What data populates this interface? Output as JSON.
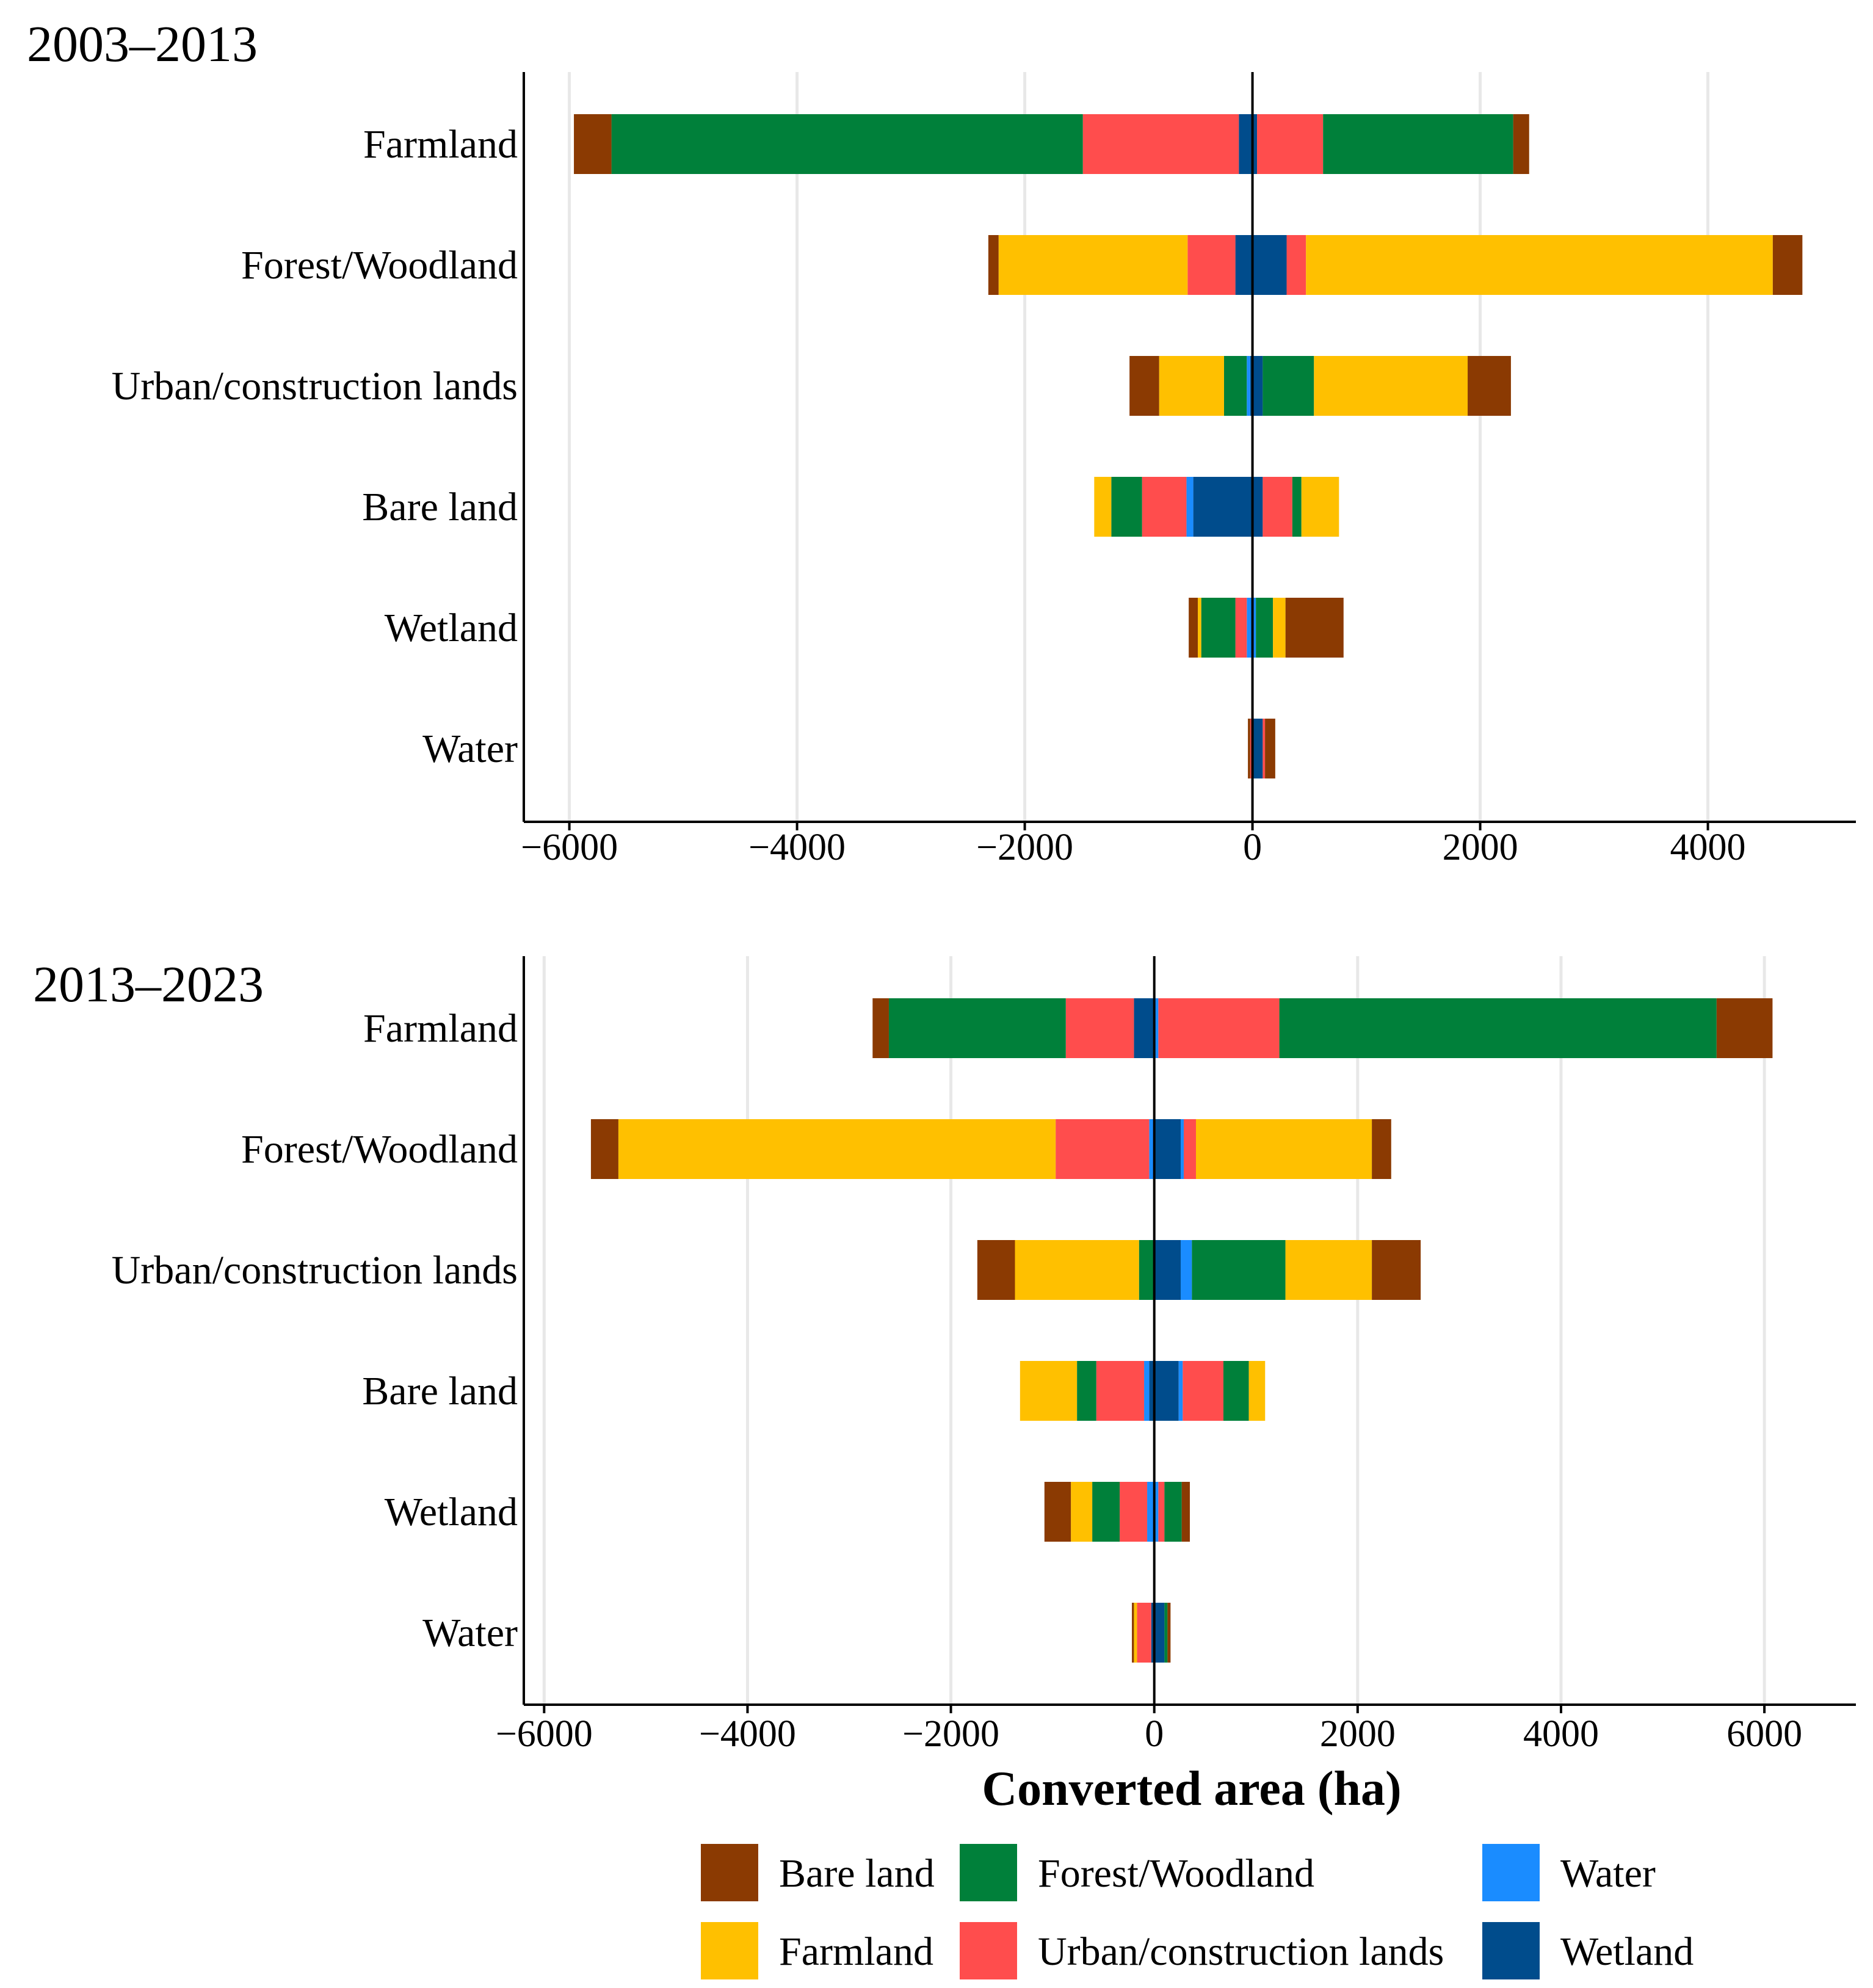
{
  "figure": {
    "xlabel": "Converted area (ha)"
  },
  "chart_data": [
    {
      "type": "bar",
      "orientation": "horizontal-diverging-stacked",
      "title": "2003–2013",
      "xlim": [
        -6400,
        5300
      ],
      "xticks": [
        -6000,
        -4000,
        -2000,
        0,
        2000,
        4000
      ],
      "xtick_labels": [
        "−6000",
        "−4000",
        "−2000",
        "0",
        "2000",
        "4000"
      ],
      "grid": true,
      "categories": [
        "Farmland",
        "Forest/Woodland",
        "Urban/construction lands",
        "Bare land",
        "Wetland",
        "Water"
      ],
      "rows": [
        {
          "category": "Farmland",
          "negative": [
            [
              "Wetland",
              120
            ],
            [
              "Urban/construction lands",
              1370
            ],
            [
              "Forest/Woodland",
              4140
            ],
            [
              "Bare land",
              330
            ]
          ],
          "positive": [
            [
              "Wetland",
              40
            ],
            [
              "Urban/construction lands",
              580
            ],
            [
              "Forest/Woodland",
              1670
            ],
            [
              "Bare land",
              140
            ]
          ]
        },
        {
          "category": "Forest/Woodland",
          "negative": [
            [
              "Wetland",
              150
            ],
            [
              "Urban/construction lands",
              420
            ],
            [
              "Farmland",
              1660
            ],
            [
              "Bare land",
              90
            ]
          ],
          "positive": [
            [
              "Wetland",
              300
            ],
            [
              "Urban/construction lands",
              170
            ],
            [
              "Farmland",
              4100
            ],
            [
              "Bare land",
              260
            ]
          ]
        },
        {
          "category": "Urban/construction lands",
          "negative": [
            [
              "Wetland",
              20
            ],
            [
              "Water",
              30
            ],
            [
              "Forest/Woodland",
              200
            ],
            [
              "Farmland",
              570
            ],
            [
              "Bare land",
              260
            ]
          ],
          "positive": [
            [
              "Wetland",
              90
            ],
            [
              "Forest/Woodland",
              450
            ],
            [
              "Farmland",
              1350
            ],
            [
              "Bare land",
              380
            ]
          ]
        },
        {
          "category": "Bare land",
          "negative": [
            [
              "Wetland",
              520
            ],
            [
              "Water",
              60
            ],
            [
              "Urban/construction lands",
              390
            ],
            [
              "Forest/Woodland",
              270
            ],
            [
              "Farmland",
              150
            ]
          ],
          "positive": [
            [
              "Wetland",
              90
            ],
            [
              "Urban/construction lands",
              260
            ],
            [
              "Forest/Woodland",
              80
            ],
            [
              "Farmland",
              330
            ]
          ]
        },
        {
          "category": "Wetland",
          "negative": [
            [
              "Water",
              50
            ],
            [
              "Urban/construction lands",
              100
            ],
            [
              "Forest/Woodland",
              300
            ],
            [
              "Farmland",
              30
            ],
            [
              "Bare land",
              80
            ]
          ],
          "positive": [
            [
              "Water",
              30
            ],
            [
              "Forest/Woodland",
              150
            ],
            [
              "Farmland",
              110
            ],
            [
              "Bare land",
              510
            ]
          ]
        },
        {
          "category": "Water",
          "negative": [
            [
              "Urban/construction lands",
              20
            ],
            [
              "Bare land",
              20
            ]
          ],
          "positive": [
            [
              "Wetland",
              90
            ],
            [
              "Urban/construction lands",
              20
            ],
            [
              "Bare land",
              90
            ]
          ]
        }
      ]
    },
    {
      "type": "bar",
      "orientation": "horizontal-diverging-stacked",
      "title": "2013–2023",
      "xlim": [
        -6200,
        6900
      ],
      "xticks": [
        -6000,
        -4000,
        -2000,
        0,
        2000,
        4000,
        6000
      ],
      "xtick_labels": [
        "−6000",
        "−4000",
        "−2000",
        "0",
        "2000",
        "4000",
        "6000"
      ],
      "grid": true,
      "categories": [
        "Farmland",
        "Forest/Woodland",
        "Urban/construction lands",
        "Bare land",
        "Wetland",
        "Water"
      ],
      "rows": [
        {
          "category": "Farmland",
          "negative": [
            [
              "Wetland",
              200
            ],
            [
              "Urban/construction lands",
              670
            ],
            [
              "Forest/Woodland",
              1740
            ],
            [
              "Bare land",
              160
            ]
          ],
          "positive": [
            [
              "Water",
              40
            ],
            [
              "Urban/construction lands",
              1190
            ],
            [
              "Forest/Woodland",
              4300
            ],
            [
              "Bare land",
              550
            ]
          ]
        },
        {
          "category": "Forest/Woodland",
          "negative": [
            [
              "Water",
              50
            ],
            [
              "Urban/construction lands",
              920
            ],
            [
              "Farmland",
              4300
            ],
            [
              "Bare land",
              270
            ]
          ],
          "positive": [
            [
              "Wetland",
              260
            ],
            [
              "Water",
              30
            ],
            [
              "Urban/construction lands",
              120
            ],
            [
              "Farmland",
              1730
            ],
            [
              "Bare land",
              190
            ]
          ]
        },
        {
          "category": "Urban/construction lands",
          "negative": [
            [
              "Forest/Woodland",
              150
            ],
            [
              "Farmland",
              1220
            ],
            [
              "Bare land",
              370
            ]
          ],
          "positive": [
            [
              "Wetland",
              260
            ],
            [
              "Water",
              110
            ],
            [
              "Forest/Woodland",
              920
            ],
            [
              "Farmland",
              850
            ],
            [
              "Bare land",
              480
            ]
          ]
        },
        {
          "category": "Bare land",
          "negative": [
            [
              "Wetland",
              50
            ],
            [
              "Water",
              50
            ],
            [
              "Urban/construction lands",
              470
            ],
            [
              "Forest/Woodland",
              190
            ],
            [
              "Farmland",
              560
            ]
          ],
          "positive": [
            [
              "Wetland",
              240
            ],
            [
              "Water",
              40
            ],
            [
              "Urban/construction lands",
              400
            ],
            [
              "Forest/Woodland",
              250
            ],
            [
              "Farmland",
              160
            ]
          ]
        },
        {
          "category": "Wetland",
          "negative": [
            [
              "Water",
              70
            ],
            [
              "Urban/construction lands",
              270
            ],
            [
              "Forest/Woodland",
              270
            ],
            [
              "Farmland",
              210
            ],
            [
              "Bare land",
              260
            ]
          ],
          "positive": [
            [
              "Water",
              40
            ],
            [
              "Urban/construction lands",
              60
            ],
            [
              "Forest/Woodland",
              170
            ],
            [
              "Bare land",
              80
            ]
          ]
        },
        {
          "category": "Water",
          "negative": [
            [
              "Wetland",
              30
            ],
            [
              "Urban/construction lands",
              140
            ],
            [
              "Farmland",
              30
            ],
            [
              "Bare land",
              20
            ]
          ],
          "positive": [
            [
              "Wetland",
              100
            ],
            [
              "Forest/Woodland",
              30
            ],
            [
              "Bare land",
              30
            ]
          ]
        }
      ]
    }
  ],
  "legend": {
    "placement": "bottom",
    "items": [
      {
        "label": "Bare land",
        "color": "#8b3a02"
      },
      {
        "label": "Forest/Woodland",
        "color": "#00803a"
      },
      {
        "label": "Water",
        "color": "#1a8cff"
      },
      {
        "label": "Farmland",
        "color": "#ffc000"
      },
      {
        "label": "Urban/construction lands",
        "color": "#ff4d4d"
      },
      {
        "label": "Wetland",
        "color": "#004c8c"
      }
    ]
  }
}
